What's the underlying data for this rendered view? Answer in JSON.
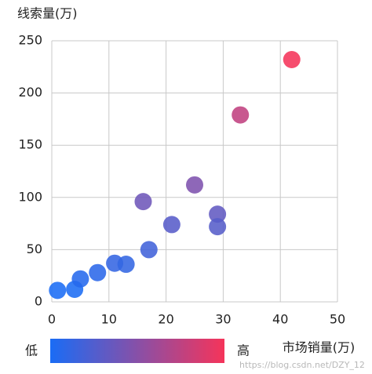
{
  "chart_data": {
    "type": "scatter",
    "y_axis_label": "线索量(万)",
    "x_axis_label": "市场销量(万)",
    "x": [
      1,
      4,
      5,
      8,
      11,
      13,
      16,
      17,
      21,
      25,
      29,
      29,
      33,
      42
    ],
    "values": [
      11,
      12,
      22,
      28,
      37,
      36,
      96,
      50,
      74,
      112,
      84,
      72,
      179,
      232
    ],
    "xlim": [
      0,
      50
    ],
    "xticks": [
      0,
      10,
      20,
      30,
      40,
      50
    ],
    "ylim": [
      0,
      250
    ],
    "yticks": [
      0,
      50,
      100,
      150,
      200,
      250
    ],
    "grid": true,
    "visual_map": {
      "colors": [
        "#1a6cf5",
        "#f5345a"
      ],
      "low_label": "低",
      "high_label": "高"
    },
    "watermark": "https://blog.csdn.net/DZY_12"
  }
}
